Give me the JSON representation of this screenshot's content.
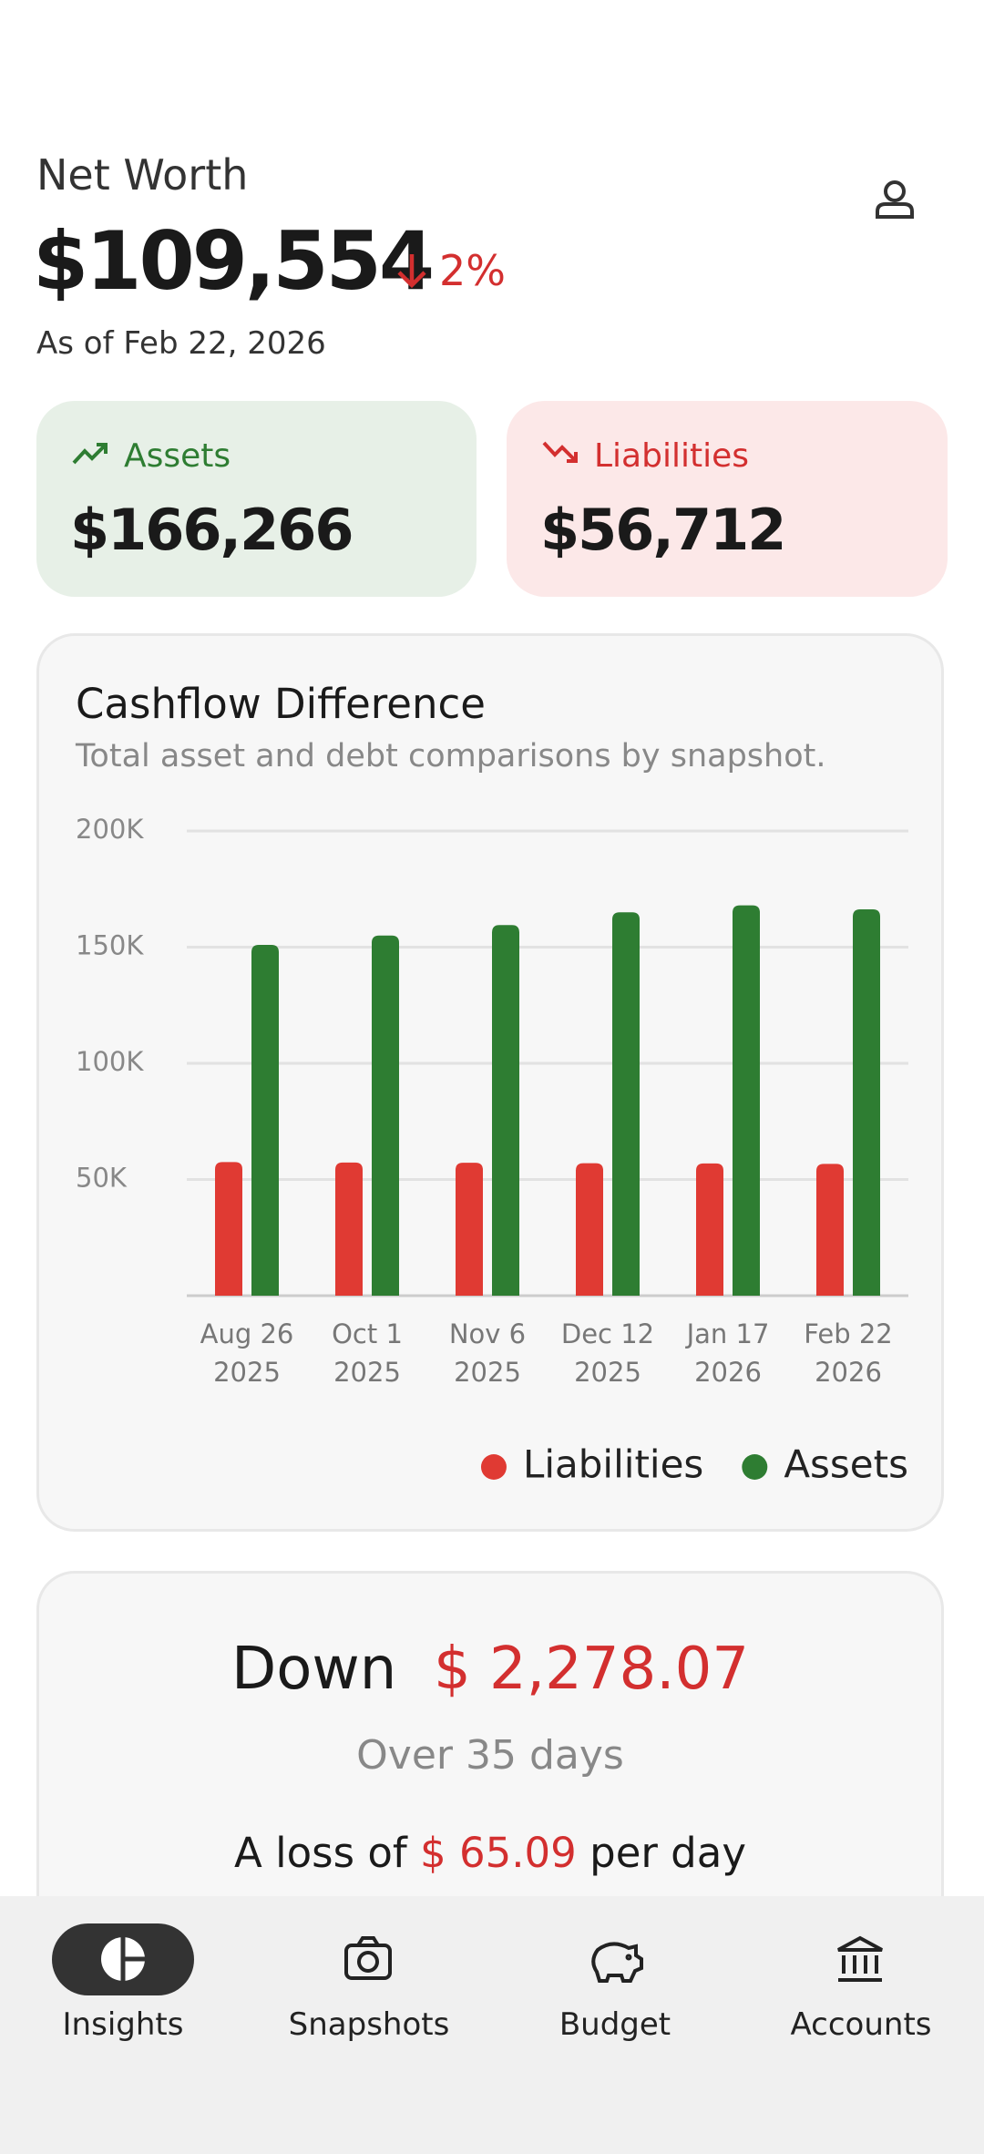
{
  "header": {
    "label": "Net Worth",
    "value": "$109,554",
    "change": "2%",
    "as_of": "As of Feb 22, 2026"
  },
  "cards": [
    {
      "label": "Assets",
      "value": "$166,266"
    },
    {
      "label": "Liabilities",
      "value": "$56,712"
    }
  ],
  "chart_data": {
    "type": "bar",
    "title": "Cashflow Difference",
    "subtitle": "Total asset and debt comparisons by snapshot.",
    "categories": [
      "Aug 26\n2025",
      "Oct 1\n2025",
      "Nov 6\n2025",
      "Dec 12\n2025",
      "Jan 17\n2026",
      "Feb 22\n2026"
    ],
    "series": [
      {
        "name": "Liabilities",
        "color": "#e03a33",
        "values": [
          57500,
          57300,
          57200,
          57000,
          56900,
          56712
        ]
      },
      {
        "name": "Assets",
        "color": "#2e7d32",
        "values": [
          151000,
          155000,
          159500,
          165000,
          168000,
          166266
        ]
      }
    ],
    "ylim": [
      0,
      200000
    ],
    "yticks": [
      {
        "value": 50000,
        "label": "50K"
      },
      {
        "value": 100000,
        "label": "100K"
      },
      {
        "value": 150000,
        "label": "150K"
      },
      {
        "value": 200000,
        "label": "200K"
      }
    ],
    "grid": true,
    "legend": "bottom-right"
  },
  "summary": {
    "headline": "Down",
    "amount": "$ 2,278.07",
    "period": "Over 35 days",
    "loss_prefix": "A loss of",
    "loss_amount": "$ 65.09",
    "loss_suffix": "per day"
  },
  "nav": [
    "Insights",
    "Snapshots",
    "Budget",
    "Accounts"
  ]
}
